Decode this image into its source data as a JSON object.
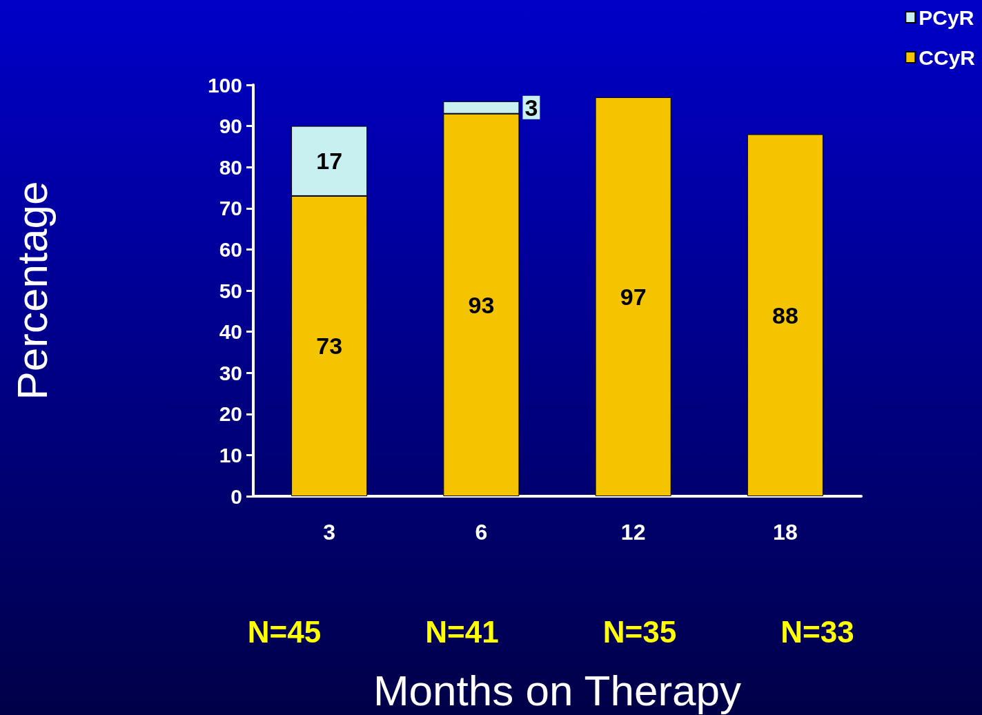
{
  "chart_data": {
    "type": "bar",
    "xlabel": "Months on Therapy",
    "ylabel": "Percentage",
    "categories": [
      "3",
      "6",
      "12",
      "18"
    ],
    "series": [
      {
        "name": "CCyR",
        "color": "#f5c400",
        "values": [
          73,
          93,
          97,
          88
        ]
      },
      {
        "name": "PCyR",
        "color": "#c8f0f0",
        "values": [
          17,
          3,
          null,
          null
        ]
      }
    ],
    "stacked": true,
    "data_labels": true,
    "ylim": [
      0,
      100
    ],
    "yticks": [
      0,
      10,
      20,
      30,
      40,
      50,
      60,
      70,
      80,
      90,
      100
    ],
    "grid": false,
    "legend": "top right",
    "annotations": [
      "N=45",
      "N=41",
      "N=35",
      "N=33"
    ]
  }
}
